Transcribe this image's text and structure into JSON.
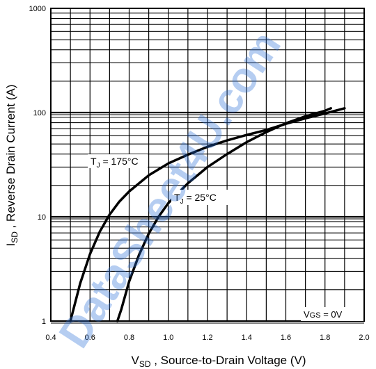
{
  "chart_data": {
    "type": "line",
    "x_axis": {
      "label_main": "V",
      "label_sub": "SD",
      "label_rest": " , Source-to-Drain Voltage (V)",
      "range": [
        0.4,
        2.0
      ],
      "ticks": [
        "0.4",
        "0.6",
        "0.8",
        "1.0",
        "1.2",
        "1.4",
        "1.6",
        "1.8",
        "2.0"
      ],
      "tick_values": [
        0.4,
        0.6,
        0.8,
        1.0,
        1.2,
        1.4,
        1.6,
        1.8,
        2.0
      ]
    },
    "y_axis": {
      "label_main": "I",
      "label_sub": "SD",
      "label_rest": " , Reverse Drain Current (A)",
      "scale": "log",
      "range": [
        1,
        1000
      ],
      "ticks": [
        "1",
        "10",
        "100",
        "1000"
      ],
      "tick_values": [
        1,
        10,
        100,
        1000
      ]
    },
    "grid": true,
    "series": [
      {
        "name_main": "T",
        "name_sub": "J",
        "name_rest": " = 175°C",
        "x": [
          0.5,
          0.55,
          0.6,
          0.65,
          0.7,
          0.75,
          0.8,
          0.9,
          1.0,
          1.1,
          1.2,
          1.3,
          1.4,
          1.5,
          1.6,
          1.7,
          1.8,
          1.9
        ],
        "y": [
          1.0,
          2.3,
          4.4,
          7.2,
          10.5,
          14.0,
          17.5,
          25.0,
          32.5,
          39.5,
          47.0,
          54.0,
          61.0,
          68.0,
          78.0,
          88.0,
          98.0,
          110.0
        ]
      },
      {
        "name_main": "T",
        "name_sub": "J",
        "name_rest": " = 25°C",
        "x": [
          0.74,
          0.76,
          0.8,
          0.85,
          0.9,
          0.95,
          1.0,
          1.1,
          1.2,
          1.3,
          1.4,
          1.5,
          1.6,
          1.7,
          1.8,
          1.83
        ],
        "y": [
          1.0,
          1.3,
          2.4,
          4.3,
          6.9,
          10.0,
          13.5,
          21.0,
          30.0,
          40.0,
          52.0,
          65.0,
          79.0,
          92.0,
          104.0,
          110.0
        ]
      }
    ],
    "annotation": {
      "main": "V",
      "sub": "GS",
      "rest": " = 0V"
    }
  },
  "watermark": "DataSheet4U.com"
}
